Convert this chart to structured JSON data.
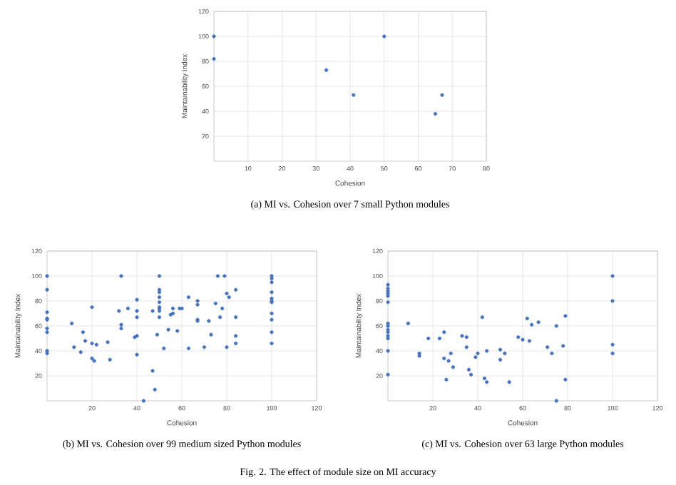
{
  "chart_data": [
    {
      "type": "scatter",
      "xlabel": "Cohesion",
      "ylabel": "Maintainability Index",
      "color": "#4472c4",
      "grid": true,
      "x": [
        0,
        0,
        33,
        41,
        50,
        65,
        67
      ],
      "values": [
        100,
        82,
        73,
        53,
        100,
        38,
        53
      ],
      "xlim": [
        0,
        80
      ],
      "xticks": [
        10,
        20,
        30,
        40,
        50,
        60,
        70,
        80
      ],
      "ylim": [
        0,
        120
      ],
      "yticks": [
        20,
        40,
        60,
        80,
        100,
        120
      ],
      "annotations": [
        "(a) MI vs. Cohesion over 7 small Python modules"
      ]
    },
    {
      "type": "scatter",
      "xlabel": "Cohesion",
      "ylabel": "Maintainability Index",
      "color": "#4472c4",
      "grid": true,
      "x": [
        0,
        0,
        0,
        0,
        0,
        0,
        0,
        0,
        0,
        11,
        12,
        15,
        16,
        17,
        20,
        20,
        20,
        21,
        22,
        27,
        28,
        32,
        33,
        33,
        33,
        36,
        40,
        40,
        40,
        39,
        40,
        40,
        47,
        47,
        48,
        49,
        43,
        50,
        50,
        50,
        50,
        50,
        50,
        50,
        50,
        50,
        52,
        54,
        55,
        56,
        56,
        58,
        59,
        60,
        63,
        63,
        67,
        67,
        67,
        67,
        70,
        72,
        73,
        76,
        75,
        77,
        78,
        79,
        80,
        81,
        80,
        84,
        84,
        84,
        84,
        100,
        100,
        100,
        100,
        100,
        100,
        100,
        100,
        100,
        100,
        100
      ],
      "values": [
        100,
        89,
        71,
        66,
        65,
        58,
        55,
        40,
        38,
        62,
        43,
        39,
        55,
        48,
        75,
        46,
        34,
        32,
        45,
        47,
        33,
        72,
        100,
        61,
        58,
        74,
        81,
        72,
        67,
        51,
        52,
        37,
        72,
        24,
        9,
        53,
        0,
        100,
        89,
        87,
        83,
        79,
        75,
        74,
        72,
        67,
        42,
        57,
        69,
        70,
        74,
        56,
        74,
        74,
        83,
        42,
        80,
        77,
        65,
        64,
        43,
        64,
        53,
        100,
        78,
        67,
        74,
        100,
        86,
        83,
        43,
        89,
        67,
        52,
        46,
        100,
        98,
        95,
        87,
        82,
        80,
        79,
        70,
        65,
        55,
        46
      ],
      "xlim": [
        0,
        120
      ],
      "xticks": [
        20,
        40,
        60,
        80,
        100,
        120
      ],
      "ylim": [
        0,
        120
      ],
      "yticks": [
        20,
        40,
        60,
        80,
        100,
        120
      ],
      "annotations": [
        "(b) MI vs. Cohesion over 99 medium sized Python modules"
      ]
    },
    {
      "type": "scatter",
      "xlabel": "Cohesion",
      "ylabel": "Maintainability Index",
      "color": "#4472c4",
      "grid": true,
      "x": [
        0,
        0,
        0,
        0,
        0,
        0,
        0,
        0,
        0,
        0,
        0,
        0,
        0,
        0,
        9,
        14,
        14,
        18,
        23,
        25,
        25,
        26,
        27,
        28,
        29,
        33,
        35,
        35,
        36,
        37,
        39,
        40,
        42,
        43,
        44,
        44,
        50,
        50,
        52,
        54,
        58,
        60,
        62,
        63,
        64,
        67,
        71,
        73,
        75,
        75,
        78,
        79,
        79,
        100,
        100,
        100,
        100
      ],
      "values": [
        93,
        90,
        88,
        86,
        84,
        79,
        62,
        60,
        57,
        55,
        52,
        50,
        40,
        21,
        62,
        36,
        38,
        50,
        50,
        55,
        34,
        17,
        32,
        38,
        27,
        52,
        51,
        43,
        25,
        21,
        35,
        38,
        67,
        18,
        15,
        40,
        33,
        41,
        38,
        15,
        51,
        49,
        66,
        48,
        61,
        63,
        43,
        38,
        60,
        0,
        44,
        68,
        17,
        100,
        80,
        45,
        38
      ],
      "xlim": [
        0,
        120
      ],
      "xticks": [
        20,
        40,
        60,
        80,
        100,
        120
      ],
      "ylim": [
        0,
        120
      ],
      "yticks": [
        20,
        40,
        60,
        80,
        100,
        120
      ],
      "annotations": [
        "(c) MI vs. Cohesion over 63 large Python modules",
        "Fig. 2.  The effect of module size on MI accuracy"
      ]
    }
  ]
}
